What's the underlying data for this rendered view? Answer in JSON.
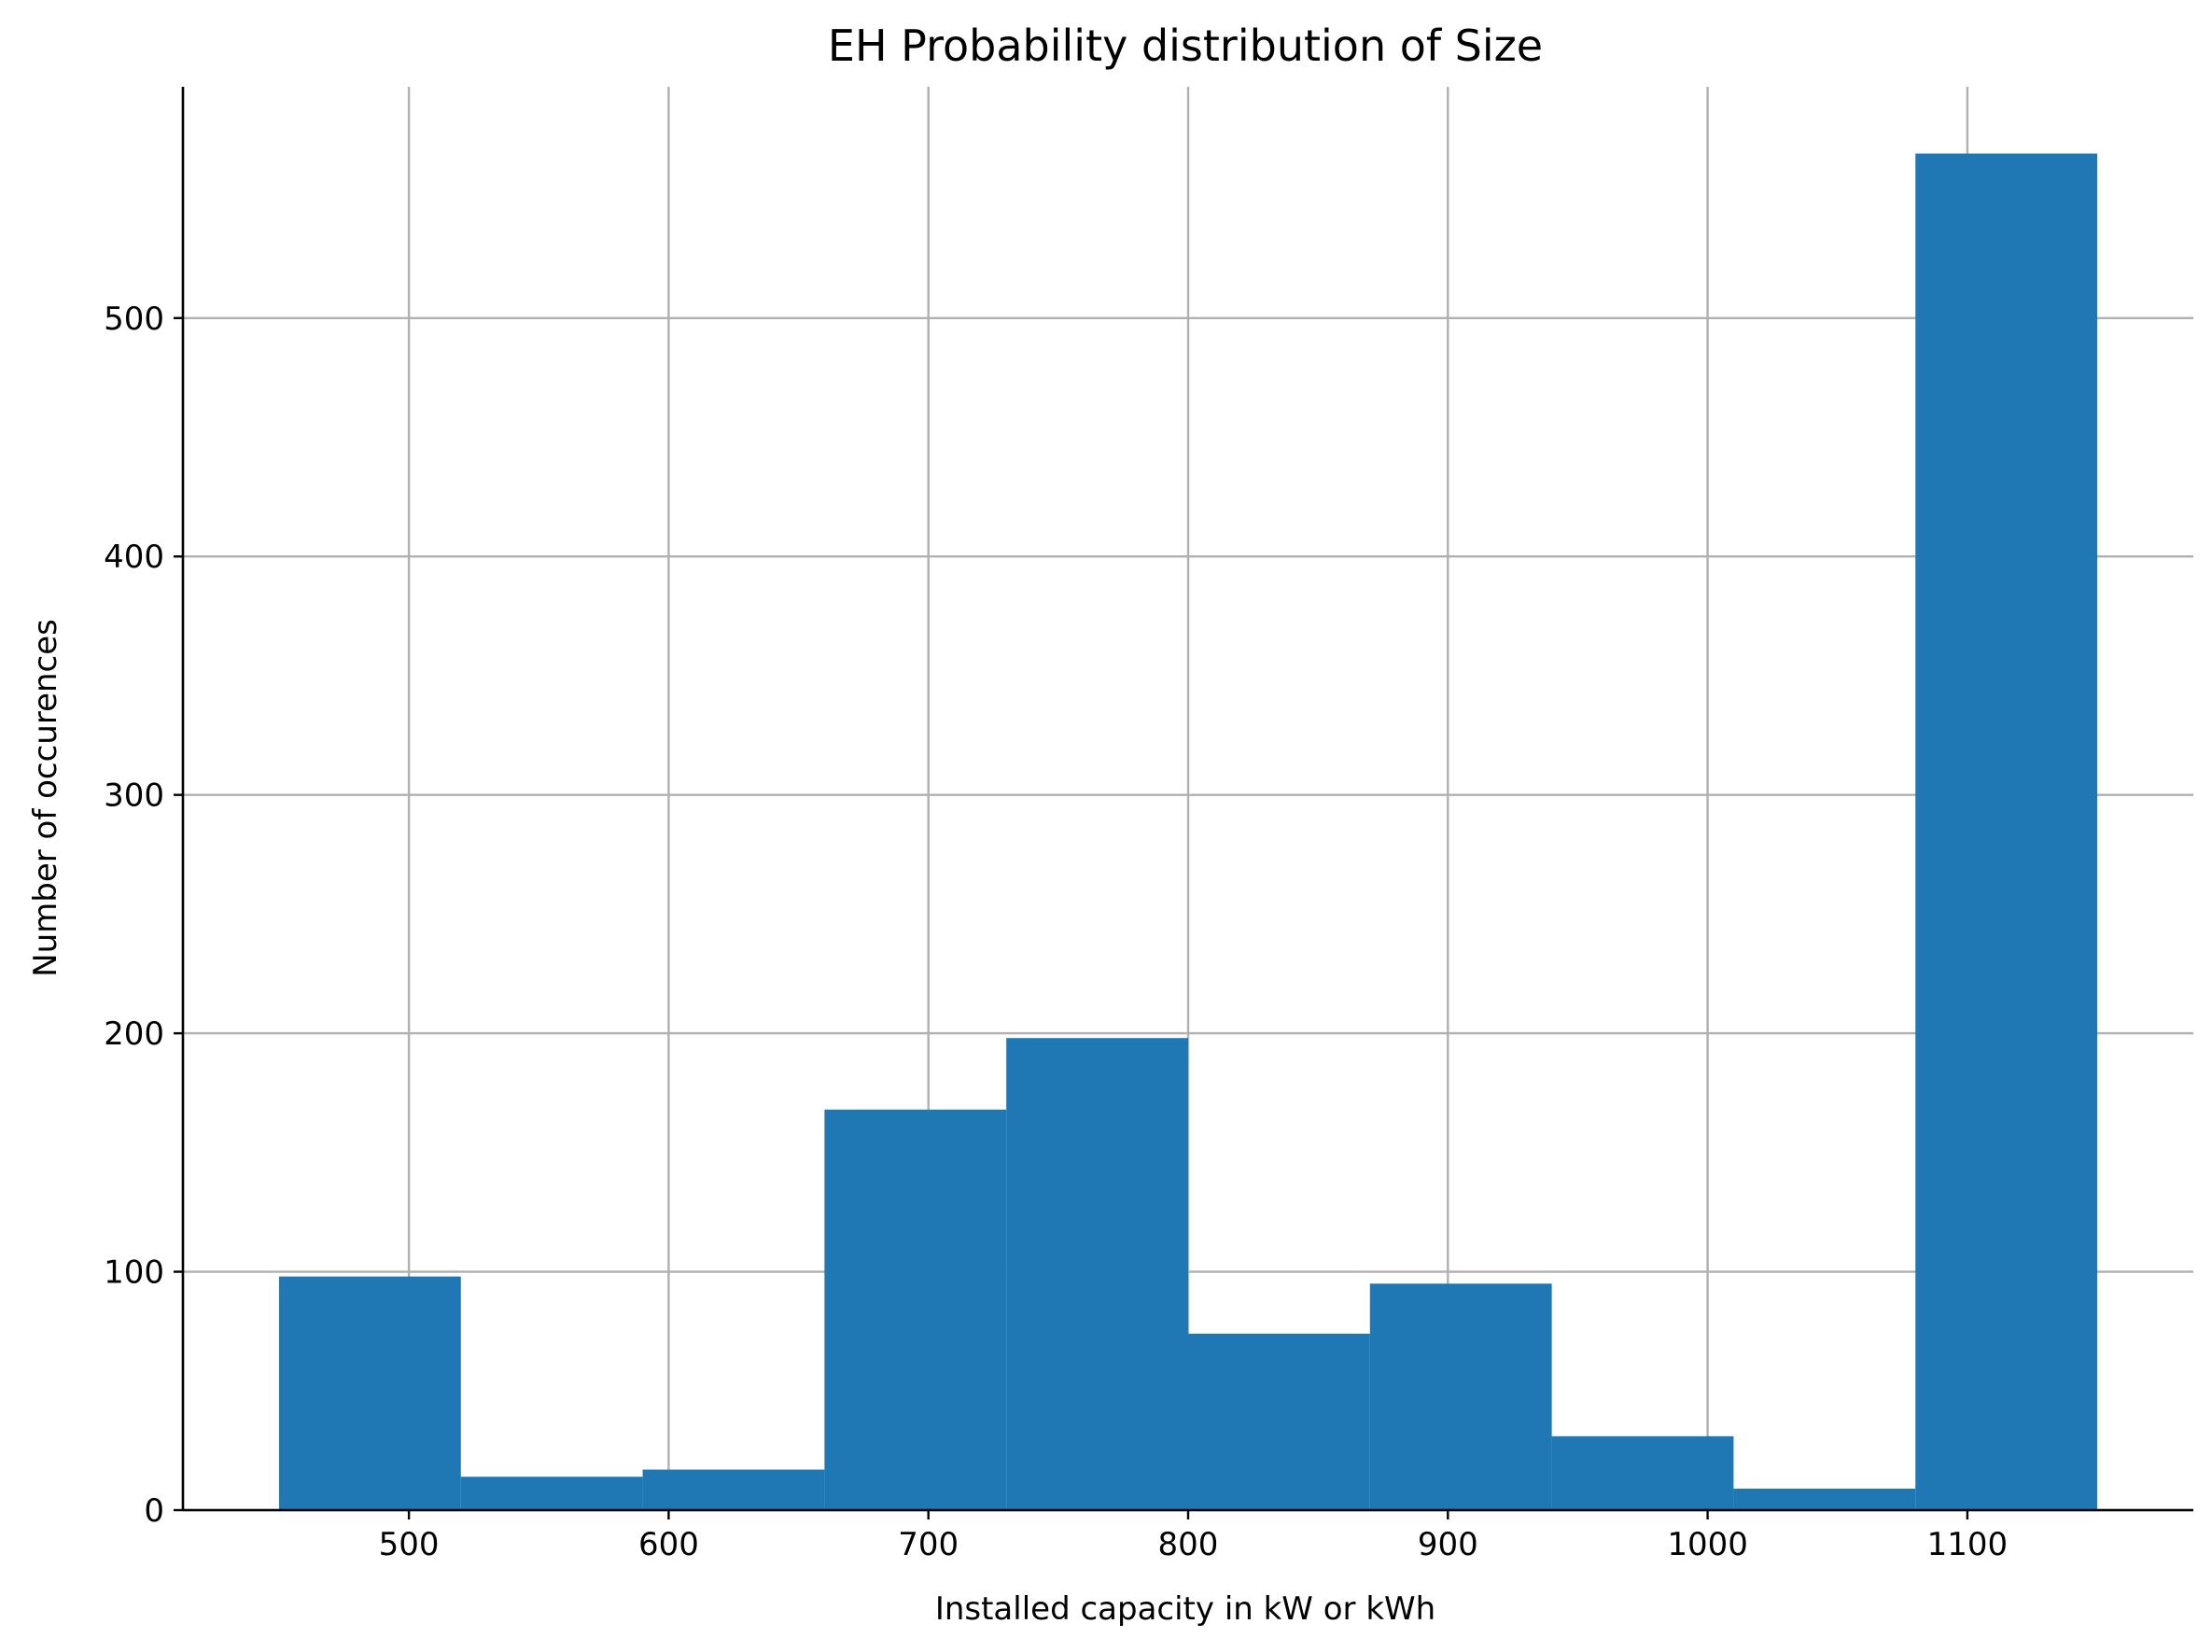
{
  "chart_data": {
    "type": "bar",
    "title": "EH Probability distribution of Size",
    "xlabel": "Installed capacity in kW or kWh",
    "ylabel": "Number of occurences",
    "bar_color": "#1f77b4",
    "grid": true,
    "grid_color": "#b0b0b0",
    "xlim": [
      413,
      1187
    ],
    "ylim": [
      0,
      597
    ],
    "x_ticks": [
      500,
      600,
      700,
      800,
      900,
      1000,
      1100
    ],
    "x_tick_labels": [
      "500",
      "600",
      "700",
      "800",
      "900",
      "1000",
      "1100"
    ],
    "y_ticks": [
      0,
      100,
      200,
      300,
      400,
      500
    ],
    "y_tick_labels": [
      "0",
      "100",
      "200",
      "300",
      "400",
      "500"
    ],
    "bins": [
      {
        "start": 450,
        "end": 520,
        "count": 98
      },
      {
        "start": 520,
        "end": 590,
        "count": 14
      },
      {
        "start": 590,
        "end": 660,
        "count": 17
      },
      {
        "start": 660,
        "end": 730,
        "count": 168
      },
      {
        "start": 730,
        "end": 800,
        "count": 198
      },
      {
        "start": 800,
        "end": 870,
        "count": 74
      },
      {
        "start": 870,
        "end": 940,
        "count": 95
      },
      {
        "start": 940,
        "end": 1010,
        "count": 31
      },
      {
        "start": 1010,
        "end": 1080,
        "count": 9
      },
      {
        "start": 1080,
        "end": 1150,
        "count": 569
      }
    ]
  }
}
